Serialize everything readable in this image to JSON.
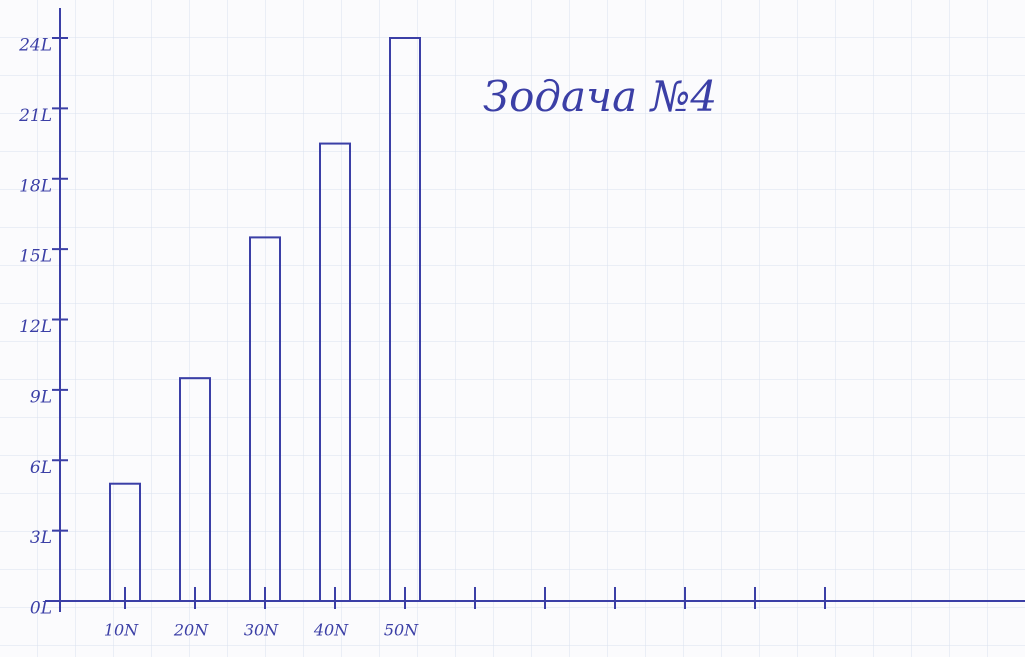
{
  "chart_data": {
    "type": "bar",
    "title": "Зoдача №4",
    "categories": [
      "10N",
      "20N",
      "30N",
      "40N",
      "50N",
      null,
      null,
      null,
      null,
      null,
      null
    ],
    "values": [
      5,
      9.5,
      15.5,
      19.5,
      24,
      null,
      null,
      null,
      null,
      null,
      null
    ],
    "color": "#3b3fa6",
    "ylim": [
      0,
      24
    ],
    "yticks": [
      {
        "value": 0,
        "label": "0L"
      },
      {
        "value": 3,
        "label": "3L"
      },
      {
        "value": 6,
        "label": "6L"
      },
      {
        "value": 9,
        "label": "9L"
      },
      {
        "value": 12,
        "label": "12L"
      },
      {
        "value": 15,
        "label": "15L"
      },
      {
        "value": 18,
        "label": "18L"
      },
      {
        "value": 21,
        "label": "21L"
      },
      {
        "value": 24,
        "label": "24L"
      }
    ],
    "grid": false
  }
}
